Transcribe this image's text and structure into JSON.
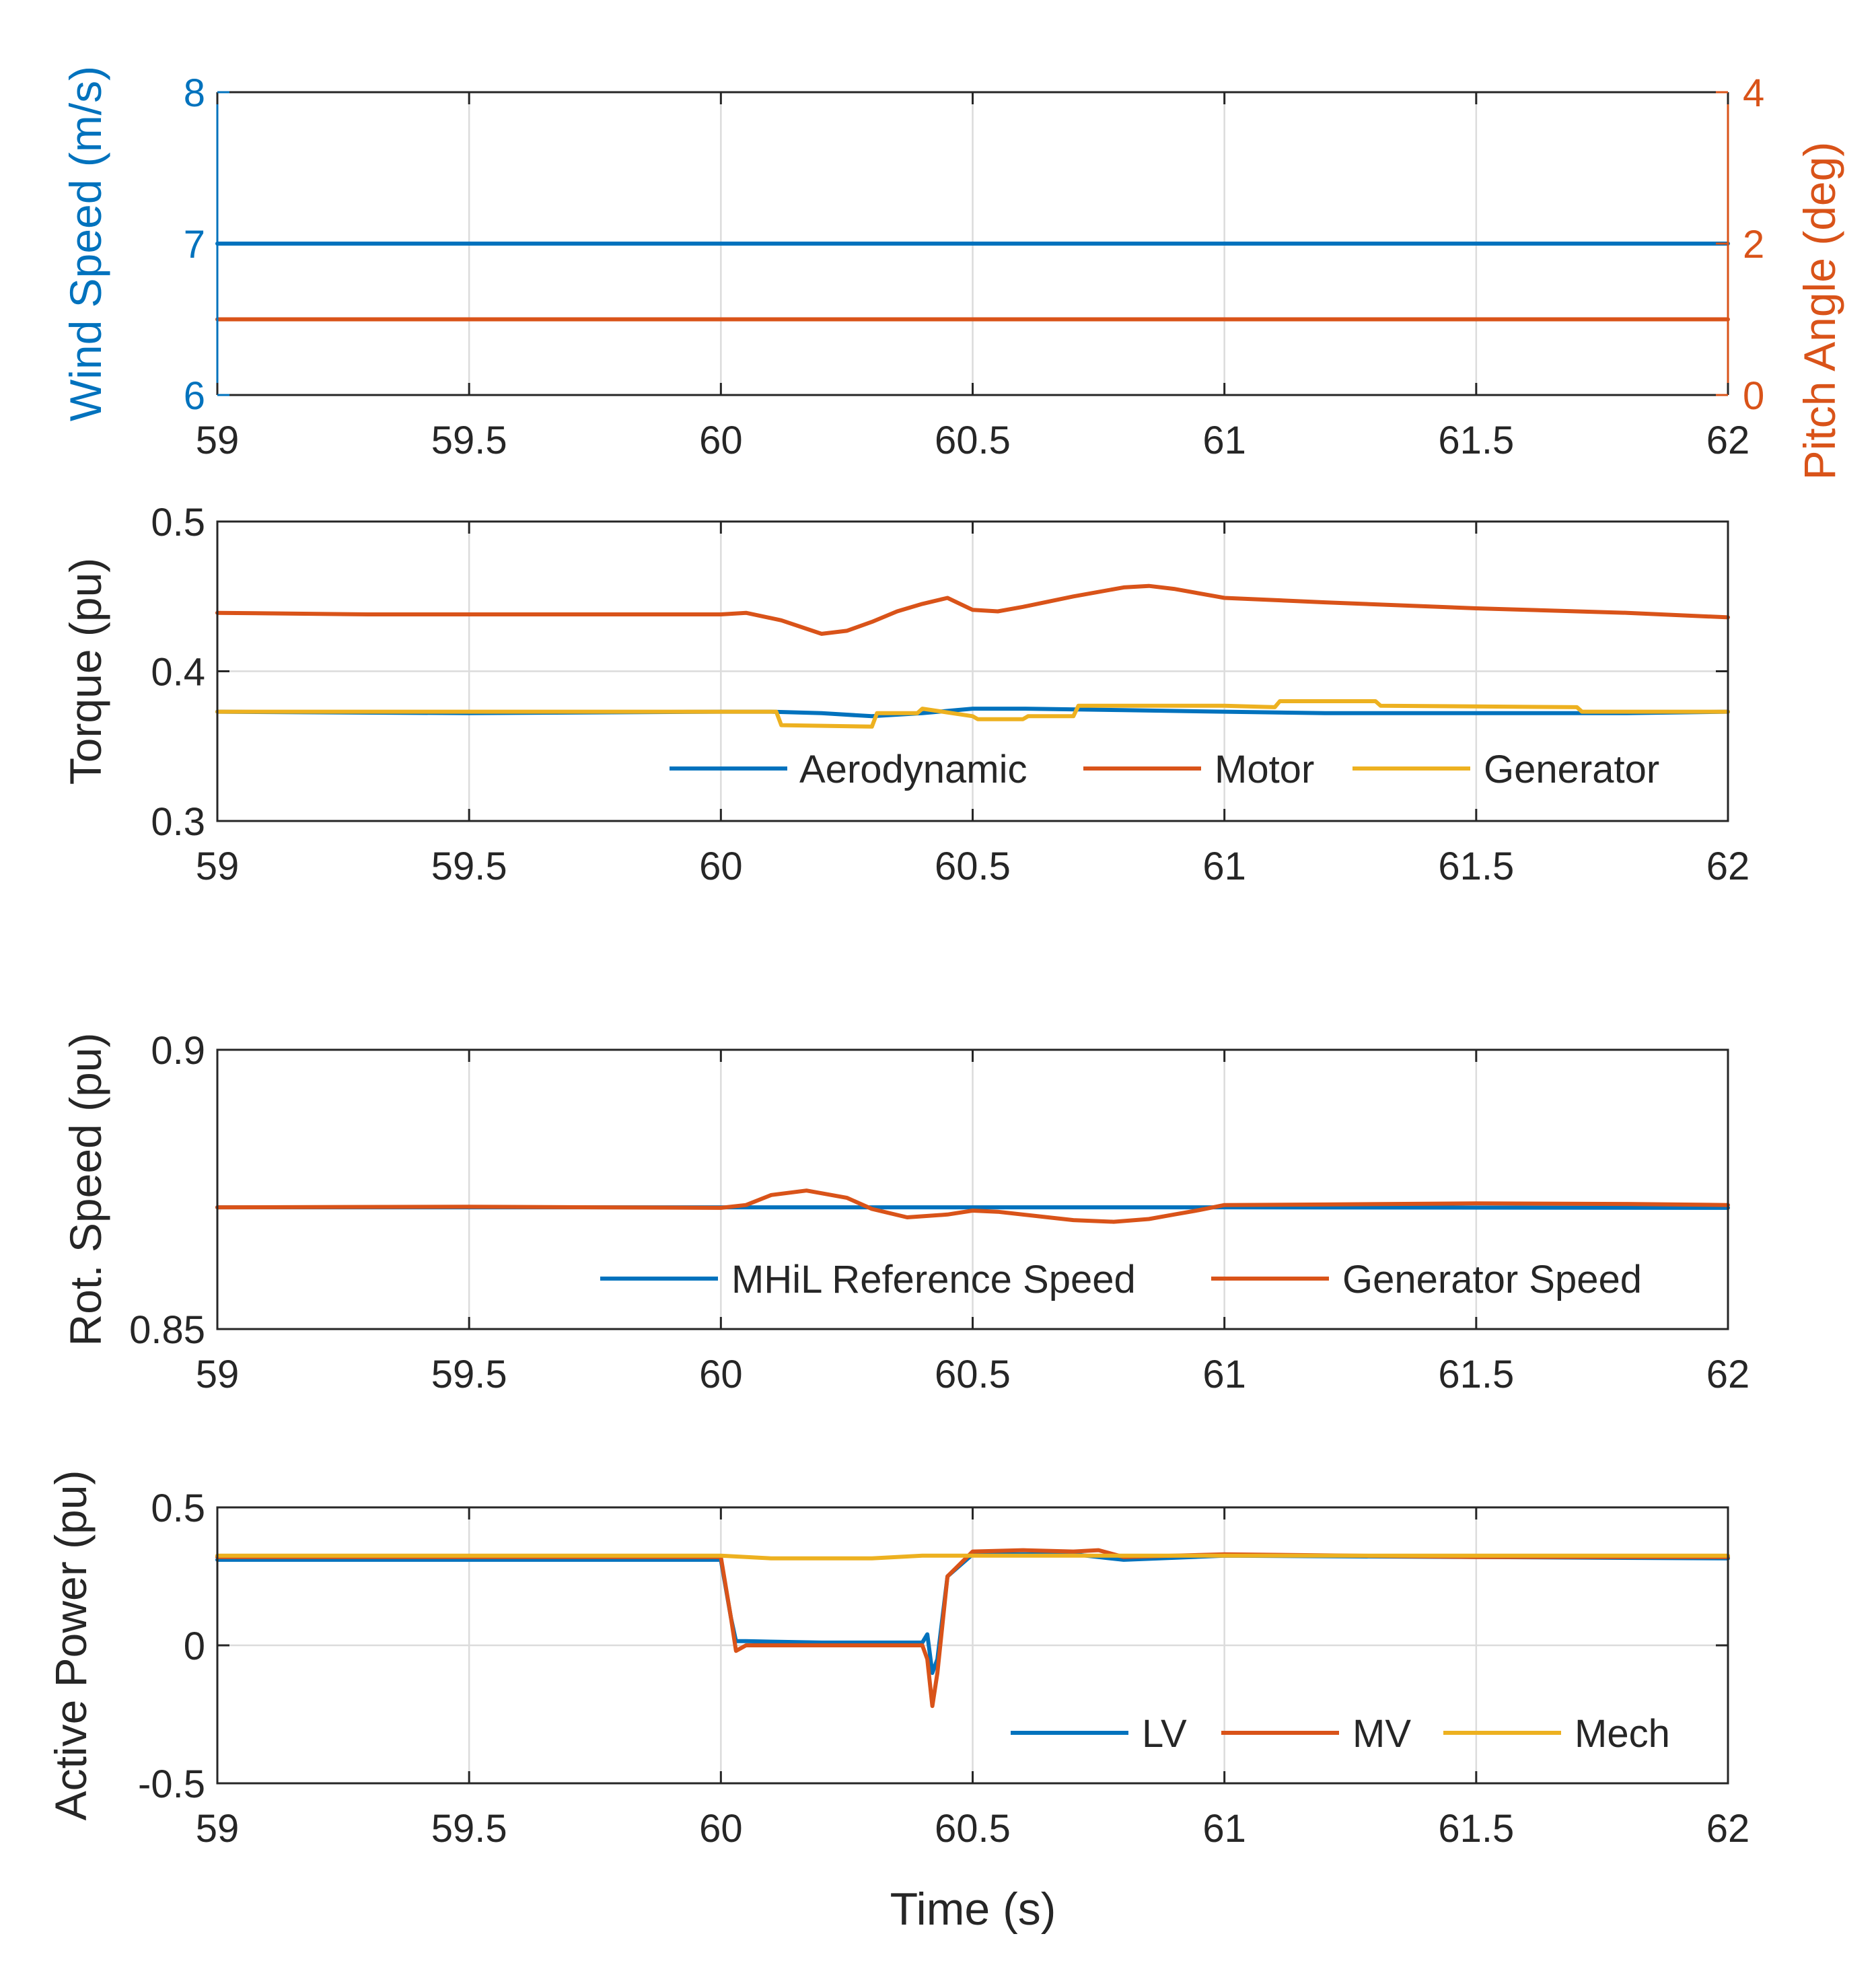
{
  "colors": {
    "blue": "#0072BD",
    "orange": "#D95319",
    "yellow": "#EDB120",
    "axis": "#262626",
    "grid": "#DCDCDC"
  },
  "xlabel": "Time (s)",
  "chart_data": [
    {
      "type": "line",
      "id": "wind-pitch",
      "xlim": [
        59,
        62
      ],
      "xticks": [
        "59",
        "59.5",
        "60",
        "60.5",
        "61",
        "61.5",
        "62"
      ],
      "ylabel": "Wind Speed (m/s)",
      "ylim": [
        6,
        8
      ],
      "yticks": [
        "6",
        "7",
        "8"
      ],
      "ylabel_right": "Pitch Angle (deg)",
      "ylim_right": [
        0,
        4
      ],
      "yticks_right": [
        "0",
        "2",
        "4"
      ],
      "series": [
        {
          "name": "Wind Speed",
          "axis": "left",
          "color": "blue",
          "x": [
            59,
            62
          ],
          "y": [
            7.0,
            7.0
          ]
        },
        {
          "name": "Pitch Angle",
          "axis": "right",
          "color": "orange",
          "x": [
            59,
            62
          ],
          "y": [
            1.0,
            1.0
          ]
        }
      ],
      "legend": null
    },
    {
      "type": "line",
      "id": "torque",
      "xlim": [
        59,
        62
      ],
      "xticks": [
        "59",
        "59.5",
        "60",
        "60.5",
        "61",
        "61.5",
        "62"
      ],
      "ylabel": "Torque (pu)",
      "ylim": [
        0.3,
        0.5
      ],
      "yticks": [
        "0.3",
        "0.4",
        "0.5"
      ],
      "legend": [
        "Aerodynamic",
        "Motor",
        "Generator"
      ],
      "legend_location": "bottom-right",
      "series": [
        {
          "name": "Aerodynamic",
          "color": "blue",
          "x": [
            59,
            59.5,
            60,
            60.1,
            60.2,
            60.3,
            60.4,
            60.5,
            60.6,
            60.8,
            61,
            61.2,
            61.5,
            61.8,
            62
          ],
          "y": [
            0.373,
            0.372,
            0.373,
            0.373,
            0.372,
            0.37,
            0.372,
            0.375,
            0.375,
            0.374,
            0.373,
            0.372,
            0.372,
            0.372,
            0.373
          ]
        },
        {
          "name": "Motor",
          "color": "orange",
          "x": [
            59,
            59.3,
            59.6,
            59.9,
            60.0,
            60.05,
            60.12,
            60.2,
            60.25,
            60.3,
            60.35,
            60.4,
            60.45,
            60.5,
            60.55,
            60.6,
            60.7,
            60.8,
            60.85,
            60.9,
            61.0,
            61.2,
            61.5,
            61.8,
            62
          ],
          "y": [
            0.439,
            0.438,
            0.438,
            0.438,
            0.438,
            0.439,
            0.434,
            0.425,
            0.427,
            0.433,
            0.44,
            0.445,
            0.449,
            0.441,
            0.44,
            0.443,
            0.45,
            0.456,
            0.457,
            0.455,
            0.449,
            0.446,
            0.442,
            0.439,
            0.436
          ]
        },
        {
          "name": "Generator",
          "color": "yellow",
          "x": [
            59,
            59.5,
            60.0,
            60.11,
            60.12,
            60.3,
            60.31,
            60.39,
            60.4,
            60.5,
            60.51,
            60.6,
            60.61,
            60.7,
            60.71,
            61.0,
            61.1,
            61.11,
            61.3,
            61.31,
            61.7,
            61.71,
            62
          ],
          "y": [
            0.373,
            0.373,
            0.373,
            0.373,
            0.364,
            0.363,
            0.372,
            0.372,
            0.375,
            0.37,
            0.368,
            0.368,
            0.37,
            0.37,
            0.377,
            0.377,
            0.376,
            0.38,
            0.38,
            0.377,
            0.376,
            0.373,
            0.373
          ]
        }
      ]
    },
    {
      "type": "line",
      "id": "rot-speed",
      "xlim": [
        59,
        62
      ],
      "xticks": [
        "59",
        "59.5",
        "60",
        "60.5",
        "61",
        "61.5",
        "62"
      ],
      "ylabel": "Rot. Speed (pu)",
      "ylim": [
        0.85,
        0.9
      ],
      "yticks": [
        "0.85",
        "0.9"
      ],
      "legend": [
        "MHiL Reference Speed",
        "Generator Speed"
      ],
      "legend_location": "bottom-right",
      "series": [
        {
          "name": "MHiL Reference Speed",
          "color": "blue",
          "x": [
            59,
            60,
            61,
            62
          ],
          "y": [
            0.8718,
            0.8718,
            0.8718,
            0.8717
          ]
        },
        {
          "name": "Generator Speed",
          "color": "orange",
          "x": [
            59,
            59.5,
            60.0,
            60.05,
            60.1,
            60.17,
            60.25,
            60.3,
            60.37,
            60.45,
            60.5,
            60.55,
            60.65,
            60.7,
            60.78,
            60.85,
            60.9,
            60.95,
            61.0,
            61.2,
            61.5,
            61.8,
            62
          ],
          "y": [
            0.8718,
            0.8719,
            0.8717,
            0.8722,
            0.874,
            0.8748,
            0.8735,
            0.8715,
            0.87,
            0.8705,
            0.8712,
            0.871,
            0.87,
            0.8695,
            0.8692,
            0.8697,
            0.8705,
            0.8713,
            0.8722,
            0.8723,
            0.8725,
            0.8724,
            0.8722
          ]
        }
      ]
    },
    {
      "type": "line",
      "id": "active-power",
      "xlim": [
        59,
        62
      ],
      "xticks": [
        "59",
        "59.5",
        "60",
        "60.5",
        "61",
        "61.5",
        "62"
      ],
      "ylabel": "Active Power (pu)",
      "ylim": [
        -0.5,
        0.5
      ],
      "yticks": [
        "-0.5",
        "0",
        "0.5"
      ],
      "legend": [
        "LV",
        "MV",
        "Mech"
      ],
      "legend_location": "bottom-right",
      "series": [
        {
          "name": "LV",
          "color": "blue",
          "x": [
            59,
            60.0,
            60.02,
            60.03,
            60.05,
            60.2,
            60.4,
            60.41,
            60.42,
            60.43,
            60.45,
            60.5,
            60.7,
            60.8,
            61.0,
            61.5,
            62
          ],
          "y": [
            0.31,
            0.31,
            0.1,
            0.015,
            0.015,
            0.01,
            0.01,
            0.04,
            -0.1,
            -0.05,
            0.25,
            0.33,
            0.33,
            0.31,
            0.325,
            0.32,
            0.315
          ]
        },
        {
          "name": "MV",
          "color": "orange",
          "x": [
            59,
            60.0,
            60.02,
            60.03,
            60.05,
            60.2,
            60.4,
            60.41,
            60.42,
            60.43,
            60.45,
            60.5,
            60.6,
            60.7,
            60.75,
            60.8,
            61.0,
            61.5,
            62
          ],
          "y": [
            0.32,
            0.32,
            0.1,
            -0.02,
            0.0,
            0.0,
            0.0,
            -0.05,
            -0.22,
            -0.1,
            0.25,
            0.34,
            0.345,
            0.34,
            0.345,
            0.32,
            0.33,
            0.32,
            0.32
          ]
        },
        {
          "name": "Mech",
          "color": "yellow",
          "x": [
            59,
            60.0,
            60.1,
            60.3,
            60.4,
            61.0,
            62
          ],
          "y": [
            0.325,
            0.325,
            0.315,
            0.315,
            0.325,
            0.325,
            0.325
          ]
        }
      ]
    }
  ]
}
